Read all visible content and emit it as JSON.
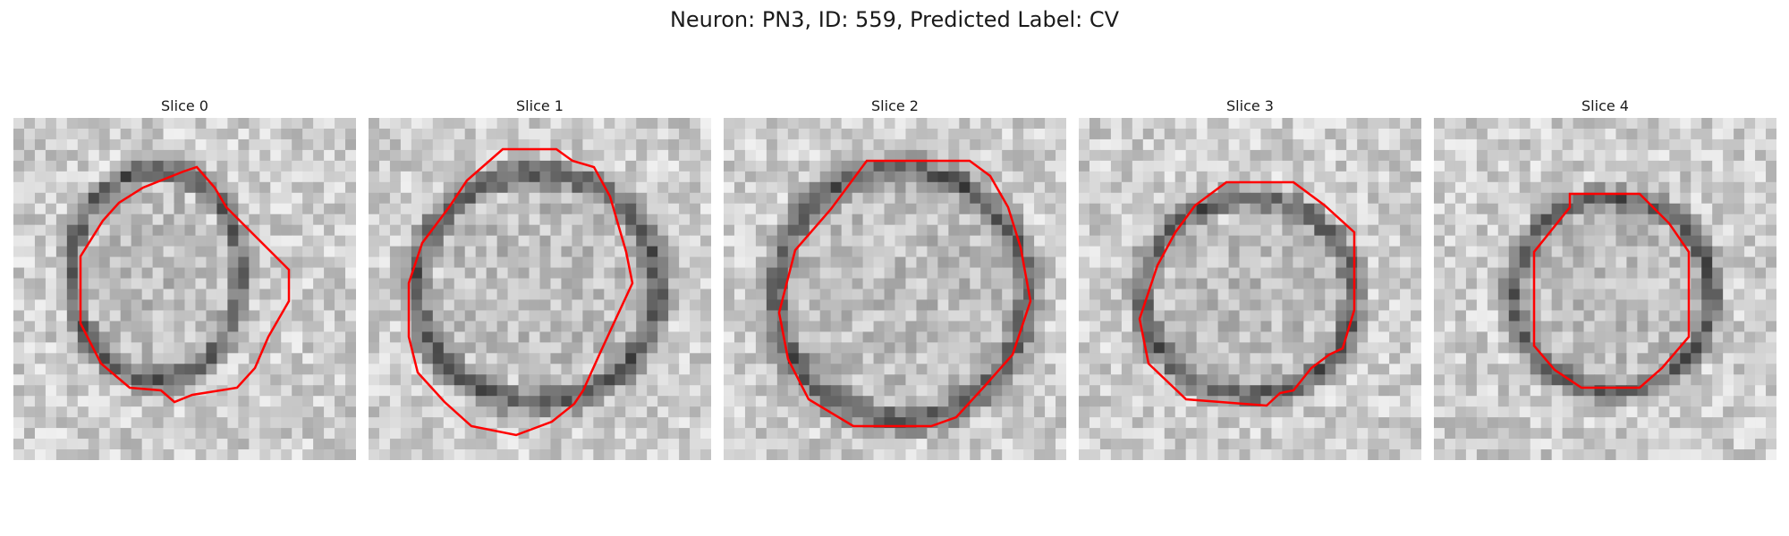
{
  "figure": {
    "title": "Neuron: PN3, ID: 559, Predicted Label: CV"
  },
  "slices": [
    {
      "label": "Slice 0"
    },
    {
      "label": "Slice 1"
    },
    {
      "label": "Slice 2"
    },
    {
      "label": "Slice 3"
    },
    {
      "label": "Slice 4"
    }
  ],
  "colors": {
    "contour": "#ff0000",
    "background": "#ffffff",
    "colormap": "grayscale"
  }
}
